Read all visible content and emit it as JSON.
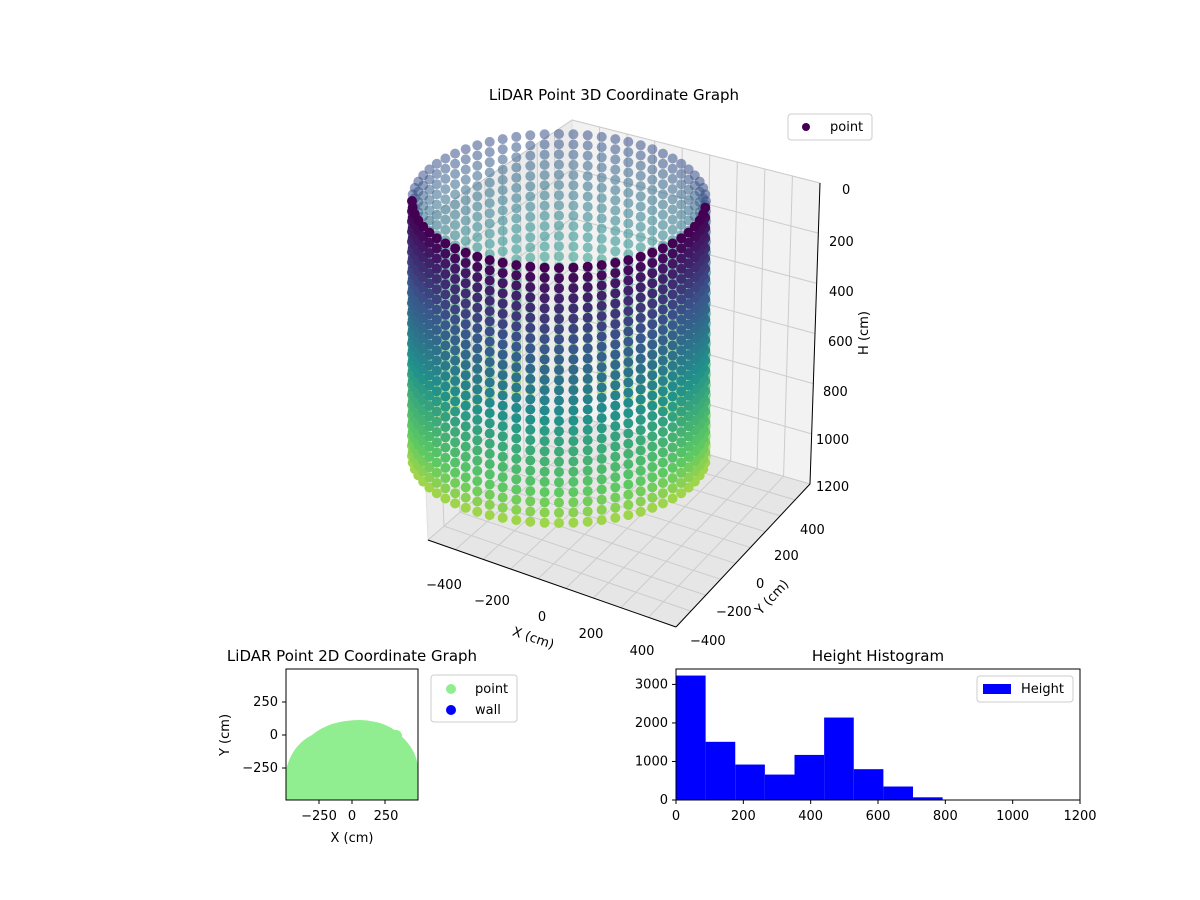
{
  "chart_data": [
    {
      "type": "scatter",
      "projection": "3d",
      "title": "LiDAR Point 3D Coordinate Graph",
      "xlabel": "X (cm)",
      "ylabel": "Y (cm)",
      "zlabel": "H (cm)",
      "xticks": [
        "−400",
        "−200",
        "0",
        "200",
        "400"
      ],
      "yticks": [
        "400",
        "200",
        "0",
        "−200",
        "−400"
      ],
      "zticks": [
        "0",
        "200",
        "400",
        "600",
        "800",
        "1000",
        "1200"
      ],
      "xlim": [
        -450,
        450
      ],
      "ylim": [
        -450,
        450
      ],
      "zlim": [
        0,
        1200
      ],
      "z_inverted": true,
      "legend": [
        {
          "label": "point",
          "color": "#440154"
        }
      ],
      "legend_position": "top-right",
      "grid": true,
      "colormap": "viridis",
      "series": [
        {
          "name": "point",
          "shape": "cylinder",
          "radius": 300,
          "h_range": [
            0,
            800
          ]
        }
      ]
    },
    {
      "type": "scatter",
      "title": "LiDAR Point 2D Coordinate Graph",
      "xlabel": "X (cm)",
      "ylabel": "Y (cm)",
      "xticks": [
        "−250",
        "0",
        "250"
      ],
      "yticks": [
        "250",
        "0",
        "−250"
      ],
      "xlim": [
        -500,
        500
      ],
      "ylim": [
        -500,
        500
      ],
      "legend": [
        {
          "label": "point",
          "color": "#90ee90"
        },
        {
          "label": "wall",
          "color": "#0000ff"
        }
      ],
      "legend_position": "outside-right"
    },
    {
      "type": "bar",
      "title": "Height Histogram",
      "xticks": [
        "0",
        "200",
        "400",
        "600",
        "800",
        "1000",
        "1200"
      ],
      "yticks": [
        "0",
        "1000",
        "2000",
        "3000"
      ],
      "xlim": [
        0,
        1200
      ],
      "ylim": [
        0,
        3400
      ],
      "bin_edges": [
        0,
        88,
        176,
        264,
        352,
        440,
        528,
        616,
        704,
        792
      ],
      "values": [
        3230,
        1510,
        920,
        660,
        1170,
        2140,
        800,
        350,
        70
      ],
      "color": "#0000ff",
      "legend": [
        {
          "label": "Height",
          "color": "#0000ff"
        }
      ],
      "legend_position": "top-right"
    }
  ]
}
